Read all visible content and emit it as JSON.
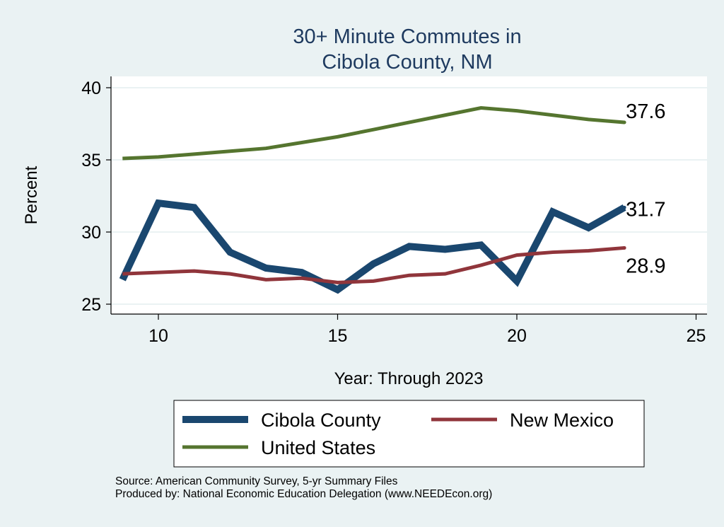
{
  "chart_data": {
    "type": "line",
    "title": [
      "30+ Minute Commutes in",
      "Cibola County, NM"
    ],
    "xlabel": "Year: Through 2023",
    "ylabel": "Percent",
    "xlim": [
      8.7,
      25.3
    ],
    "ylim": [
      24.2,
      41.0
    ],
    "xticks": [
      10,
      15,
      20,
      25
    ],
    "yticks": [
      25,
      30,
      35,
      40
    ],
    "grid": "horizontal",
    "legend_placement": "bottom",
    "x": [
      9,
      10,
      11,
      12,
      13,
      14,
      15,
      16,
      17,
      18,
      19,
      20,
      21,
      22,
      23
    ],
    "series": [
      {
        "name": "Cibola County",
        "color": "#1a476f",
        "values": [
          26.7,
          32.0,
          31.7,
          28.6,
          27.5,
          27.2,
          26.0,
          27.8,
          29.0,
          28.8,
          29.1,
          26.6,
          31.4,
          30.3,
          31.7
        ],
        "end_label": "31.7"
      },
      {
        "name": "New Mexico",
        "color": "#90353b",
        "values": [
          27.1,
          27.2,
          27.3,
          27.1,
          26.7,
          26.8,
          26.5,
          26.6,
          27.0,
          27.1,
          27.7,
          28.4,
          28.6,
          28.7,
          28.9
        ],
        "end_label": "28.9"
      },
      {
        "name": "United States",
        "color": "#55752f",
        "values": [
          35.1,
          35.2,
          35.4,
          35.6,
          35.8,
          36.2,
          36.6,
          37.1,
          37.6,
          38.1,
          38.6,
          38.4,
          38.1,
          37.8,
          37.6
        ],
        "end_label": "37.6"
      }
    ]
  },
  "notes": {
    "source": "Source: American Community Survey, 5-yr Summary Files",
    "produced": "Produced by: National Economic Education Delegation (www.NEEDEcon.org)"
  }
}
